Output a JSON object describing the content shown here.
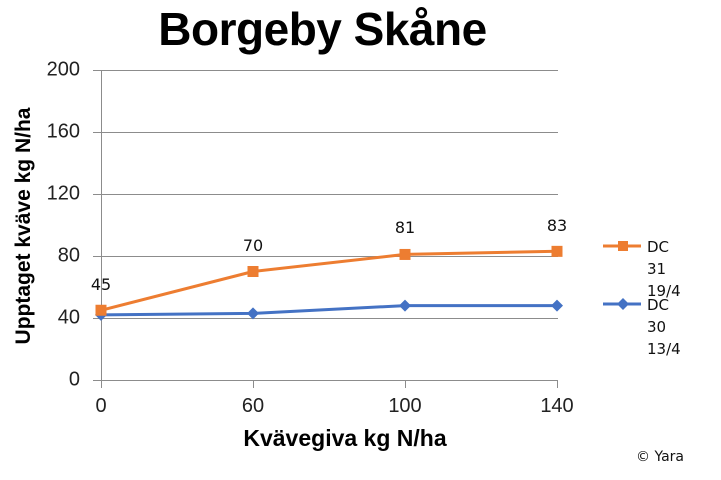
{
  "chart_data": {
    "type": "line",
    "title": "Borgeby Skåne",
    "xlabel": "Kvävegiva kg N/ha",
    "ylabel": "Upptaget kväve kg N/ha",
    "categories": [
      "0",
      "60",
      "100",
      "140"
    ],
    "ylim": [
      0,
      200
    ],
    "yticks": [
      "0",
      "40",
      "80",
      "120",
      "160",
      "200"
    ],
    "grid": true,
    "legend_position": "right",
    "series": [
      {
        "name": "DC 31 19/4",
        "color": "#ED7D31",
        "marker": "square",
        "values": [
          45,
          70,
          81,
          83
        ],
        "data_labels": [
          "45",
          "70",
          "81",
          "83"
        ]
      },
      {
        "name": "DC 30 13/4",
        "color": "#4472C4",
        "marker": "diamond",
        "values": [
          42,
          43,
          48,
          48
        ]
      }
    ],
    "annotations": [
      "© Yara"
    ]
  },
  "legend": {
    "items": [
      {
        "label": "DC 31\n19/4",
        "color": "#ED7D31"
      },
      {
        "label": "DC 30\n13/4",
        "color": "#4472C4"
      }
    ]
  },
  "footer": {
    "copyright": "© Yara"
  }
}
